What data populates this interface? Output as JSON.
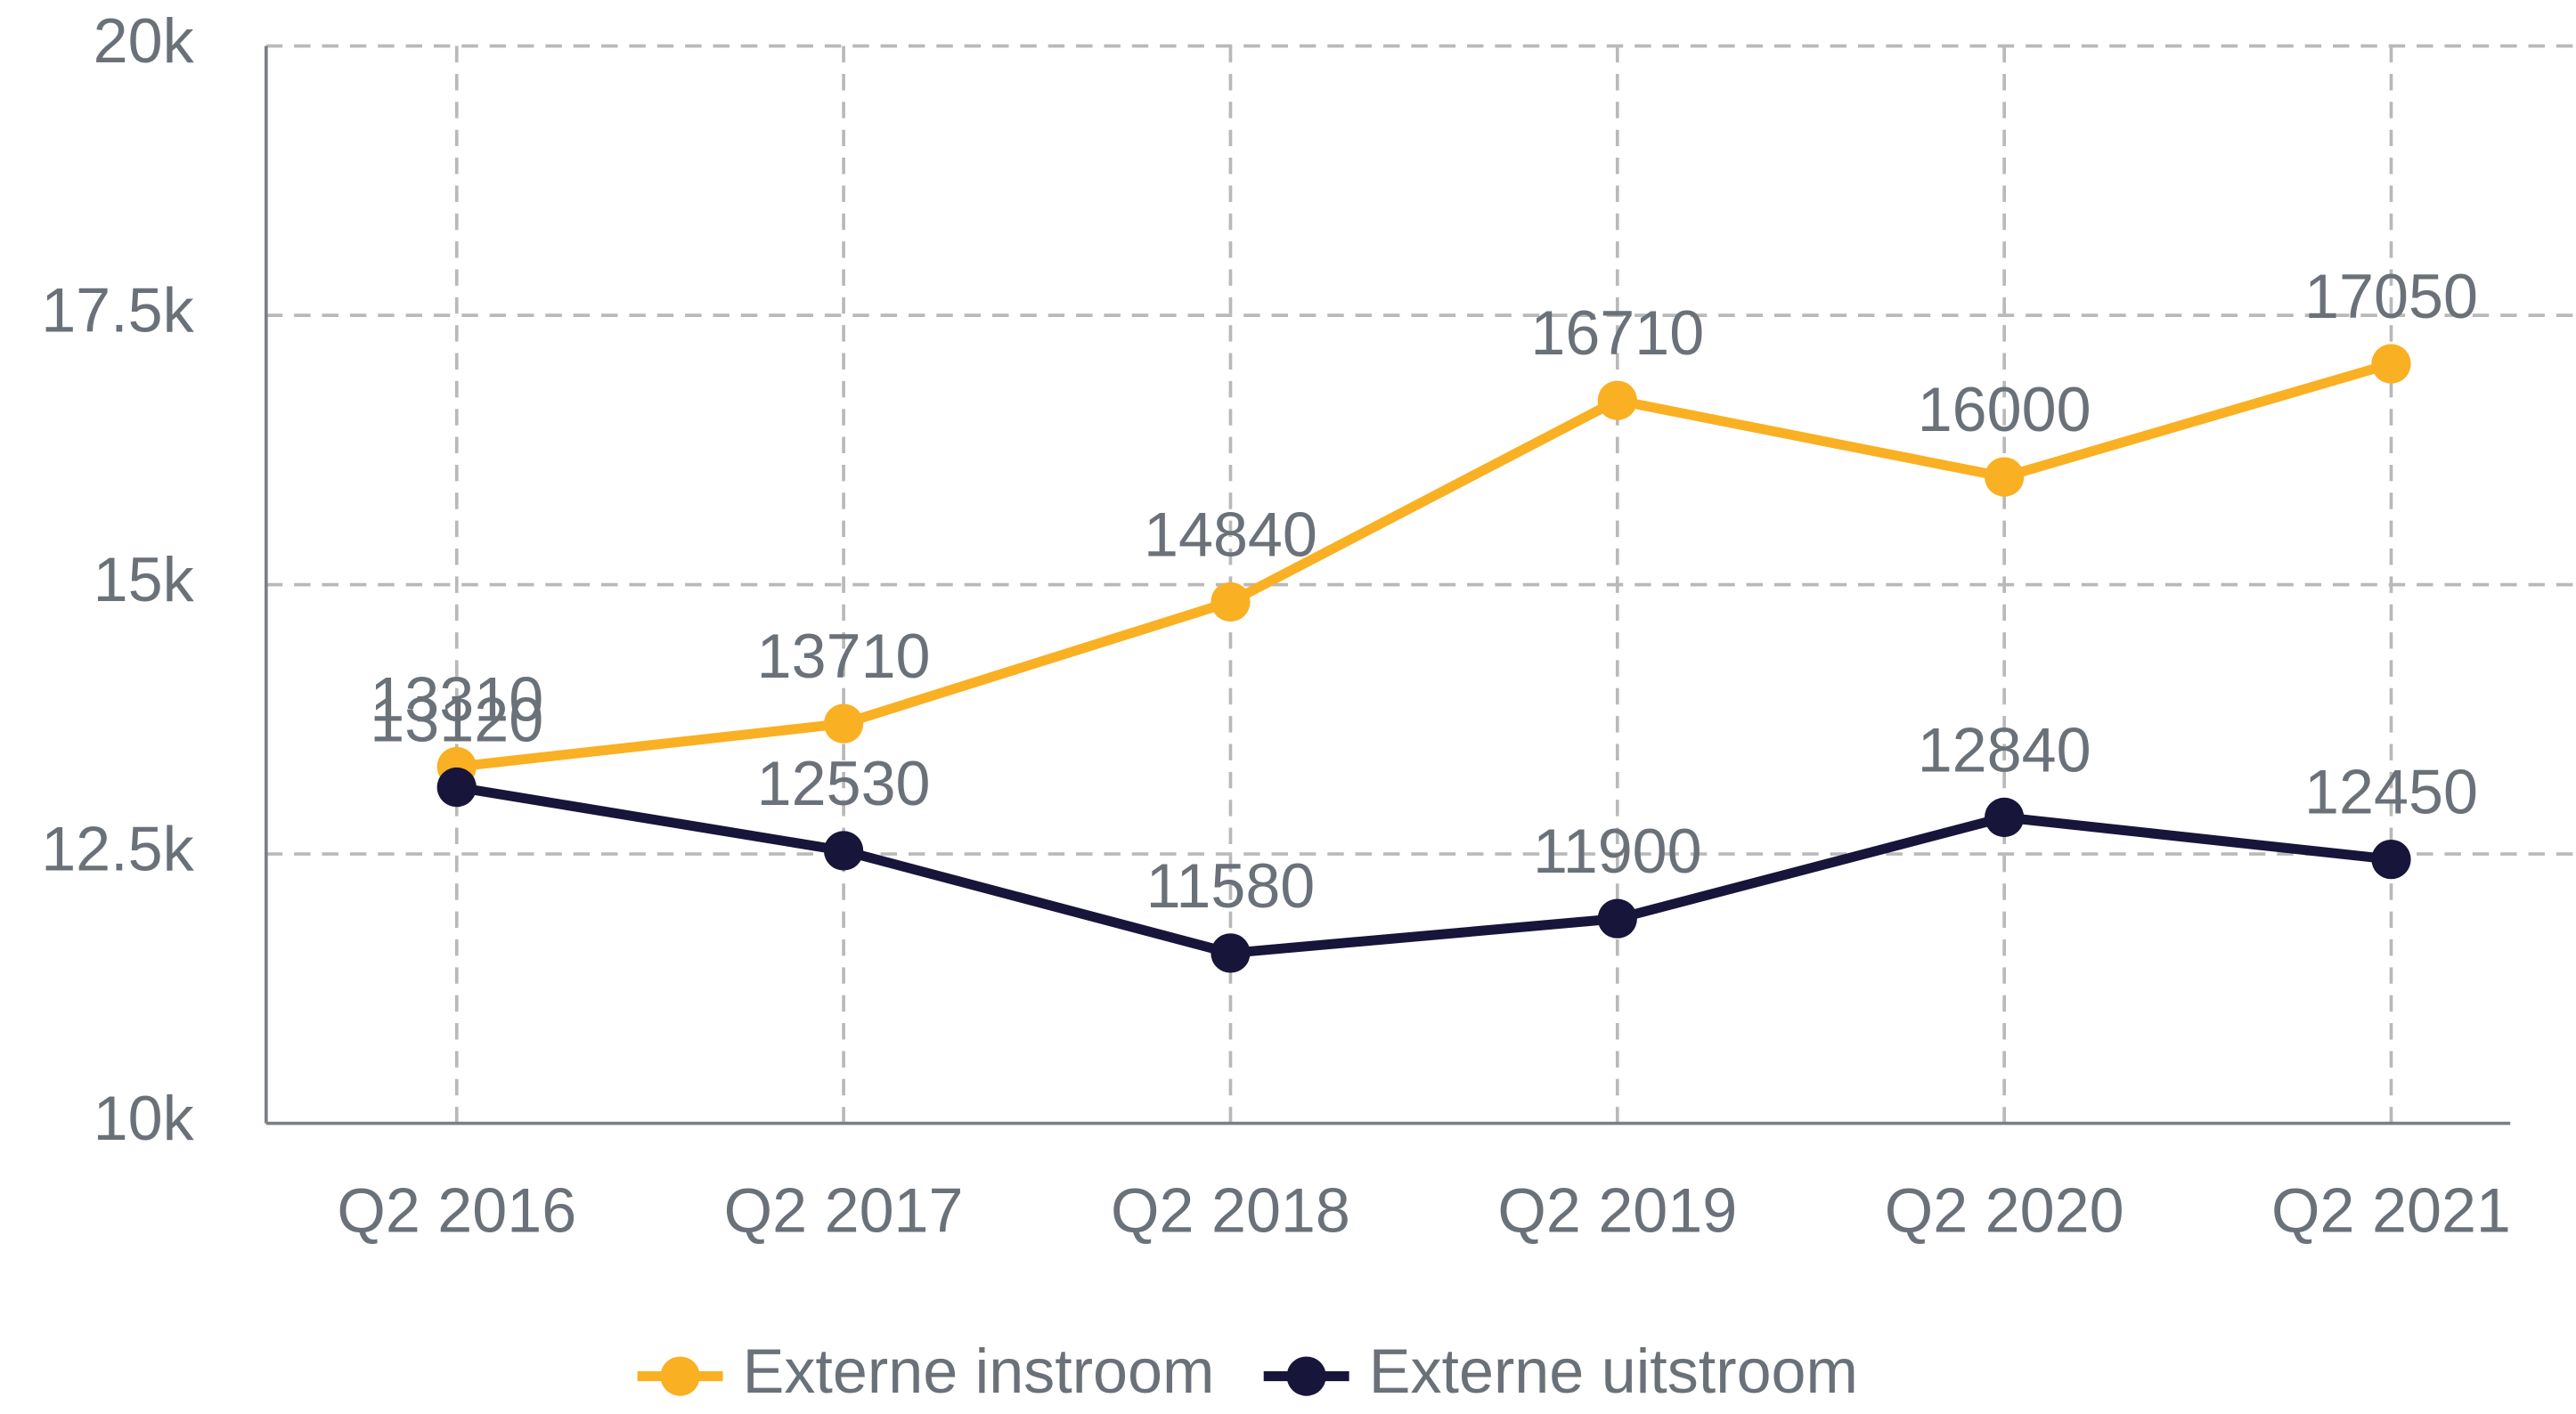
{
  "chart_data": {
    "type": "line",
    "categories": [
      "Q2 2016",
      "Q2 2017",
      "Q2 2018",
      "Q2 2019",
      "Q2 2020",
      "Q2 2021"
    ],
    "series": [
      {
        "name": "Externe instroom",
        "color": "#f9b023",
        "values": [
          13310,
          13710,
          14840,
          16710,
          16000,
          17050
        ]
      },
      {
        "name": "Externe uitstroom",
        "color": "#17153a",
        "values": [
          13120,
          12530,
          11580,
          11900,
          12840,
          12450
        ]
      }
    ],
    "ylim": [
      10000,
      20000
    ],
    "yticks": [
      {
        "value": 10000,
        "label": "10k"
      },
      {
        "value": 12500,
        "label": "12.5k"
      },
      {
        "value": 15000,
        "label": "15k"
      },
      {
        "value": 17500,
        "label": "17.5k"
      },
      {
        "value": 20000,
        "label": "20k"
      }
    ],
    "grid": true,
    "legend": "bottom"
  }
}
